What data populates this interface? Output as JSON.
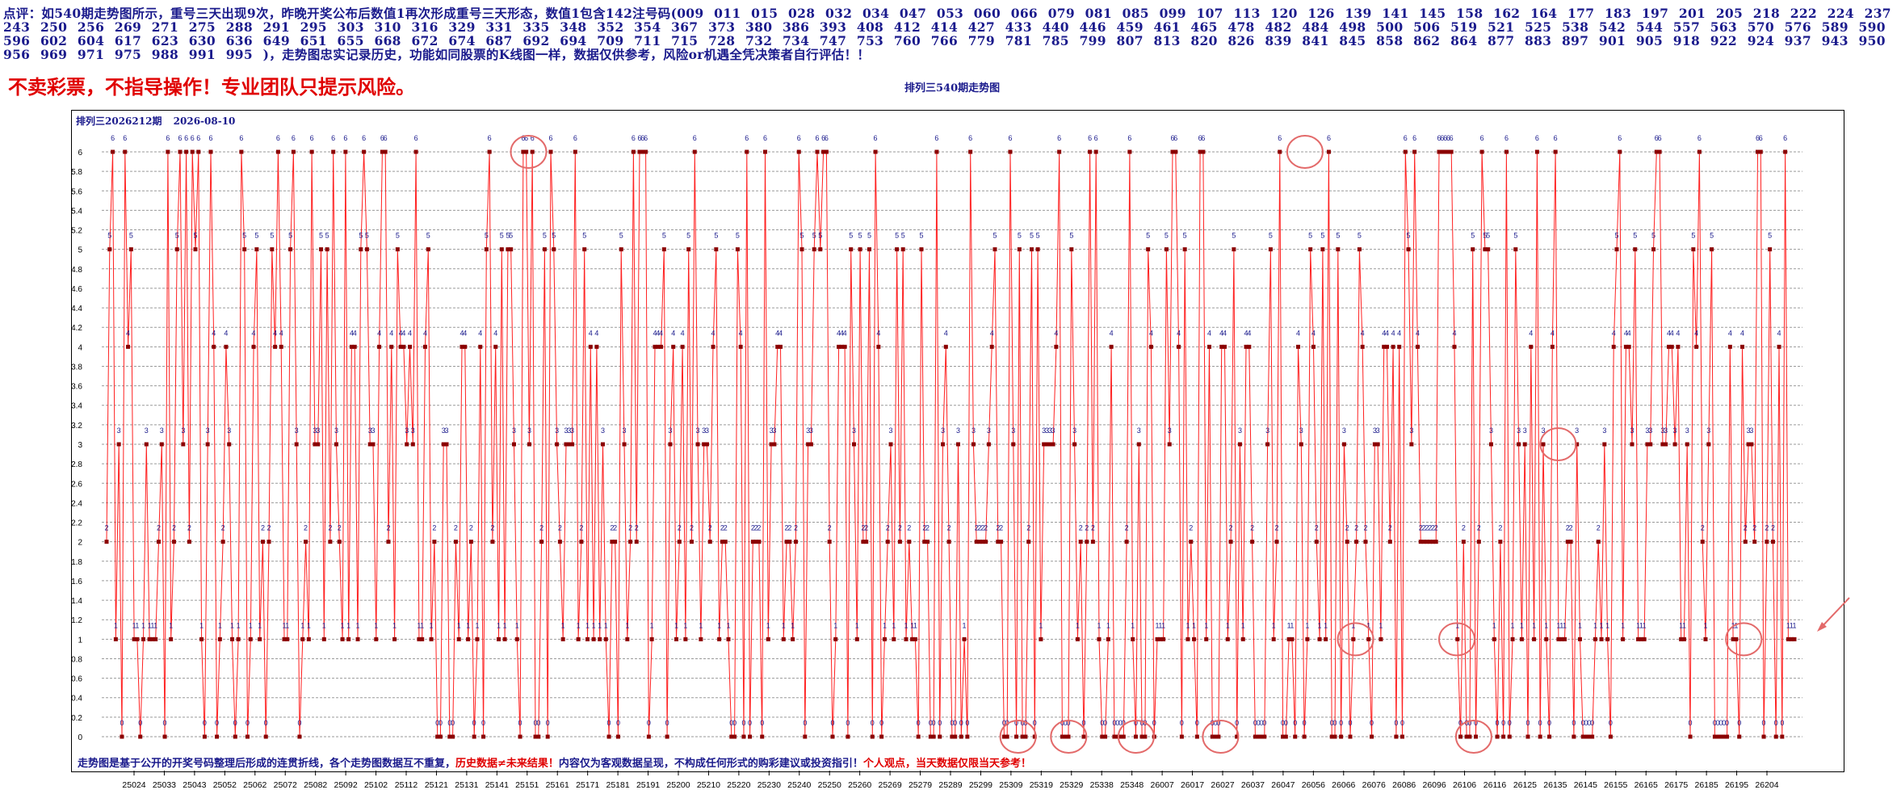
{
  "header": {
    "comment": "点评：如540期走势图所示，重号三天出现9次，昨晚开奖公布后数值1再次形成重号三天形态，数值1包含142注号码(009 011 015 028 032 034 047 053 060 066 079 081 085 099 107 113 120 126 139 141 145 158 162 164 177 183 197 201 205 218 222 224 237 243 250 256 269 271 275 288 291 295 303 310 316 329 331 335 348 352 354 367 373 380 386 393 408 412 414 427 433 440 446 459 461 465 478 482 484 498 500 506 519 521 525 538 542 544 557 563 570 576 589 590 596 602 604 617 623 630 636 649 651 655 668 672 674 687 692 694 709 711 715 728 732 734 747 753 760 766 779 781 785 799 807 813 820 826 839 841 845 858 862 864 877 883 897 901 905 918 922 924 937 943 950 956 969 971 975 988 991 995 )，走势图忠实记录历史，功能如同股票的K线图一样，数据仅供参考，风险or机遇全凭决策者自行评估！！",
    "warning": "不卖彩票，不指导操作！专业团队只提示风险。",
    "chart_title": "排列三540期走势图",
    "period_label": "排列三2026212期",
    "date_label": "2026-08-10"
  },
  "footer": {
    "note_blue": "走势图是基于公开的开奖号码整理后形成的连贯折线，各个走势图数据互不重复，",
    "note_red1": "历史数据≠未来结果！",
    "note_blue2": "内容仅为客观数据呈现，不构成任何形式的购彩建议或投资指引！",
    "note_red2": "个人观点，当天数据仅限当天参考！"
  },
  "colors": {
    "line": "#ff2020",
    "marker": "#8b0000",
    "label": "#1a1a8c",
    "grid": "#9a9a9a",
    "highlight": "#e36a6a"
  },
  "chart_data": {
    "type": "line",
    "title": "排列三540期走势图",
    "ylim": [
      0,
      6
    ],
    "yticks": [
      "0",
      "0.2",
      "0.4",
      "0.6",
      "0.8",
      "1",
      "1.2",
      "1.4",
      "1.6",
      "1.8",
      "2",
      "2.2",
      "2.4",
      "2.6",
      "2.8",
      "3",
      "3.2",
      "3.4",
      "3.6",
      "3.8",
      "4",
      "4.2",
      "4.4",
      "4.6",
      "4.8",
      "5",
      "5.2",
      "5.4",
      "5.6",
      "5.8",
      "6"
    ],
    "xtick_labels": [
      "25024",
      "25033",
      "25043",
      "25052",
      "25062",
      "25072",
      "25082",
      "25092",
      "25102",
      "25112",
      "25121",
      "25131",
      "25141",
      "25151",
      "25161",
      "25171",
      "25181",
      "25191",
      "25200",
      "25210",
      "25220",
      "25230",
      "25240",
      "25250",
      "25260",
      "25269",
      "25279",
      "25289",
      "25299",
      "25309",
      "25319",
      "25329",
      "25338",
      "25348",
      "26007",
      "26017",
      "26027",
      "26037",
      "26047",
      "26056",
      "26066",
      "26076",
      "26086",
      "26096",
      "26106",
      "26116",
      "26125",
      "26135",
      "26145",
      "26155",
      "26165",
      "26175",
      "26185",
      "26195",
      "26204"
    ],
    "grid": "horizontal dashed",
    "series": [
      {
        "values": [
          2,
          5,
          6,
          1,
          3,
          0,
          6,
          4,
          5,
          1,
          1,
          0,
          1,
          3,
          1,
          1,
          1,
          2,
          3,
          0,
          6,
          1,
          2,
          5,
          6,
          3,
          6,
          2,
          6,
          5,
          6,
          1,
          0,
          3,
          6,
          4,
          0,
          1,
          2,
          4,
          3,
          1,
          0,
          1,
          6,
          5,
          0,
          1,
          4,
          5,
          1,
          2,
          0,
          2,
          5,
          4,
          6,
          4,
          1,
          1,
          5,
          6,
          3,
          0,
          1,
          2,
          1,
          6,
          3,
          3,
          5,
          1,
          5,
          2,
          6,
          3,
          2,
          1,
          6,
          1,
          4,
          4,
          1,
          5,
          6,
          5,
          3,
          3,
          1,
          4,
          6,
          6,
          2,
          4,
          1,
          5,
          4,
          4,
          3,
          4,
          3,
          6,
          1,
          1,
          4,
          5,
          1,
          2,
          0,
          0,
          3,
          3,
          0,
          0,
          2,
          1,
          4,
          4,
          1,
          2,
          0,
          1,
          4,
          0,
          5,
          6,
          2,
          4,
          1,
          5,
          1,
          5,
          5,
          3,
          1,
          0,
          6,
          6,
          3,
          6,
          0,
          0,
          2,
          5,
          0,
          6,
          5,
          3,
          2,
          1,
          3,
          3,
          3,
          6,
          1,
          2,
          5,
          1,
          4,
          1,
          4,
          1,
          3,
          1,
          0,
          2,
          2,
          0,
          5,
          3,
          1,
          2,
          6,
          2,
          6,
          6,
          6,
          0,
          1,
          4,
          4,
          4,
          5,
          0,
          3,
          4,
          1,
          2,
          4,
          1,
          5,
          2,
          6,
          3,
          1,
          3,
          3,
          2,
          4,
          5,
          1,
          2,
          2,
          1,
          0,
          0,
          5,
          4,
          0,
          6,
          0,
          2,
          2,
          2,
          0,
          6,
          1,
          3,
          3,
          4,
          4,
          1,
          2,
          2,
          1,
          2,
          6,
          5,
          0,
          3,
          3,
          5,
          6,
          5,
          6,
          6,
          2,
          0,
          1,
          4,
          4,
          4,
          0,
          5,
          3,
          1,
          5,
          2,
          2,
          5,
          0,
          6,
          4,
          0,
          1,
          2,
          3,
          1,
          5,
          2,
          5,
          1,
          2,
          1,
          1,
          0,
          5,
          2,
          2,
          0,
          0,
          6,
          0,
          3,
          4,
          2,
          0,
          0,
          3,
          0,
          1,
          0,
          6,
          3,
          2,
          2,
          2,
          2,
          3,
          4,
          5,
          2,
          2,
          0,
          0,
          6,
          3,
          0,
          5,
          0,
          0,
          2,
          5,
          0,
          5,
          1,
          3,
          3,
          3,
          3,
          4,
          6,
          0,
          0,
          0,
          5,
          3,
          1,
          2,
          0,
          2,
          6,
          2,
          6,
          1,
          0,
          0,
          1,
          4,
          0,
          0,
          0,
          0,
          2,
          6,
          1,
          0,
          3,
          0,
          0,
          5,
          4,
          0,
          1,
          1,
          1,
          5,
          3,
          6,
          6,
          4,
          0,
          5,
          1,
          2,
          1,
          0,
          6,
          6,
          1,
          4,
          0,
          0,
          0,
          4,
          4,
          1,
          2,
          5,
          0,
          3,
          1,
          4,
          4,
          2,
          0,
          0,
          0,
          0,
          3,
          5,
          1,
          2,
          6,
          0,
          0,
          1,
          1,
          0,
          4,
          3,
          0,
          1,
          5,
          4,
          2,
          1,
          5,
          1,
          6,
          0,
          0,
          5,
          0,
          3,
          2,
          0,
          1,
          2,
          5,
          4,
          2,
          1,
          0,
          3,
          3,
          1,
          4,
          4,
          2,
          4,
          0,
          4,
          0,
          6,
          5,
          3,
          6,
          4,
          2,
          2,
          2,
          2,
          2,
          2,
          6,
          6,
          6,
          6,
          6,
          4,
          1,
          0,
          2,
          0,
          0,
          5,
          0,
          2,
          6,
          5,
          5,
          3,
          1,
          0,
          2,
          0,
          6,
          0,
          1,
          5,
          3,
          1,
          3,
          0,
          4,
          1,
          6,
          0,
          3,
          1,
          0,
          4,
          6,
          1,
          1,
          1,
          2,
          2,
          0,
          3,
          1,
          0,
          0,
          0,
          0,
          1,
          2,
          1,
          3,
          1,
          0,
          4,
          5,
          6,
          1,
          4,
          4,
          3,
          5,
          1,
          1,
          1,
          3,
          3,
          5,
          6,
          6,
          3,
          3,
          4,
          4,
          3,
          4,
          1,
          1,
          3,
          0,
          5,
          4,
          6,
          2,
          1,
          3,
          5,
          0,
          0,
          0,
          0,
          0,
          4,
          1,
          1,
          0,
          4,
          2,
          3,
          3,
          2,
          6,
          6,
          0,
          2,
          5,
          2,
          0,
          4,
          0,
          6,
          1,
          1,
          1
        ]
      }
    ],
    "circled_points": [
      "0.80,1",
      "0.74,1",
      "0.25,6",
      "0.71,6",
      "0.54,0",
      "0.57,0",
      "0.61,0",
      "0.66,0",
      "0.81,0",
      "0.86,3",
      "0.97,1"
    ]
  }
}
